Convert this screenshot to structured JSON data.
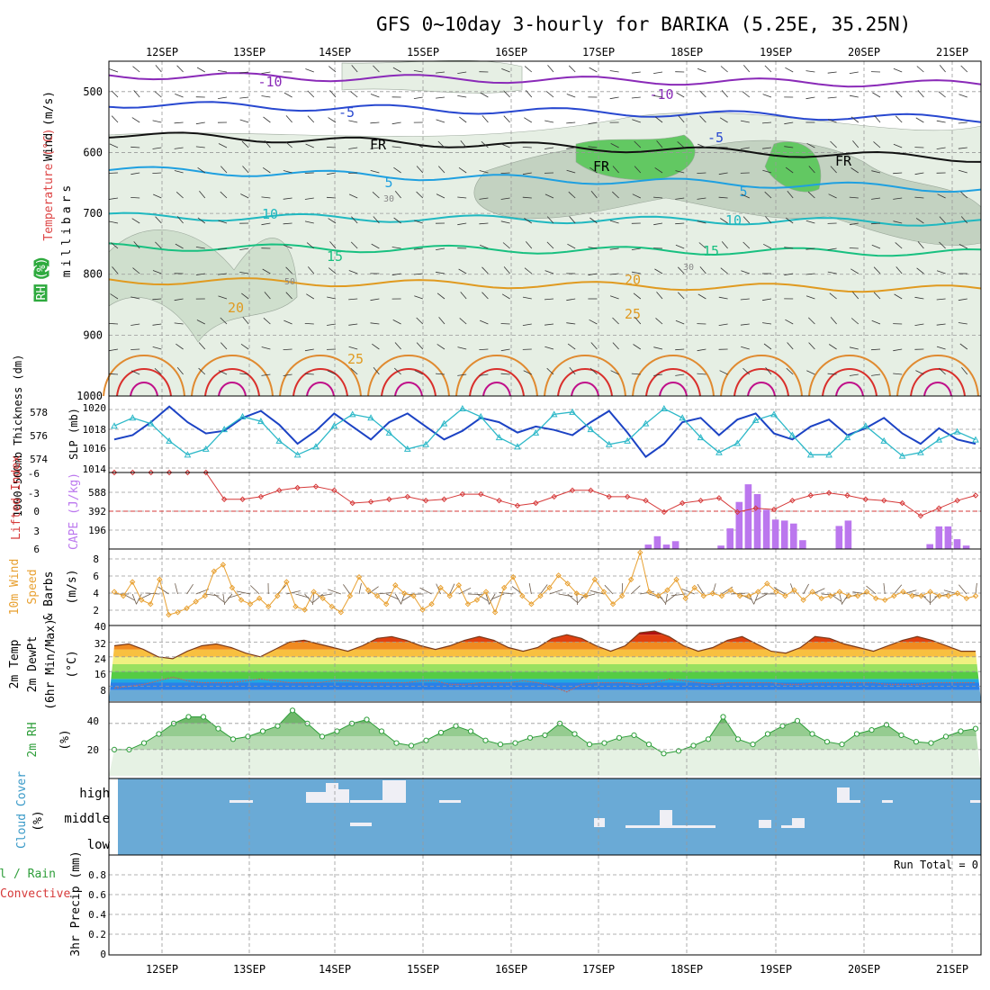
{
  "title": "GFS 0~10day 3-hourly for BARIKA (5.25E, 35.25N)",
  "date_labels": [
    "12SEP",
    "13SEP",
    "14SEP",
    "15SEP",
    "16SEP",
    "17SEP",
    "18SEP",
    "19SEP",
    "20SEP",
    "21SEP"
  ],
  "colors": {
    "dark_green": "#2e9e3a",
    "rh_fill": "#5dc55d",
    "cloud_blue": "#6aaad6",
    "cape_bar": "#bb77ee",
    "li_line": "#d63a3a",
    "wind_line": "#e8a030",
    "slp_line": "#1c43c4",
    "thick_line": "#2cb8c8"
  },
  "chart_data": [
    {
      "type": "line",
      "name": "upper-air cross section",
      "ylabel": "millibars",
      "left_labels": [
        "Wind (m/s)",
        "Temperature (°C)",
        "RH (%)"
      ],
      "pressure_ticks": [
        500,
        600,
        700,
        800,
        900,
        1000
      ],
      "ylim": [
        450,
        1000
      ],
      "contour_labels": [
        "-10",
        "-10",
        "-5",
        "-5",
        "FR",
        "FR",
        "FR",
        "5",
        "5",
        "10",
        "10",
        "15",
        "15",
        "20",
        "20",
        "25",
        "25",
        "30",
        "30",
        "50"
      ],
      "isotherms": [
        {
          "temp": -10,
          "p_start": 473,
          "p_end": 488,
          "color": "#8a2ab8"
        },
        {
          "temp": -5,
          "p_start": 520,
          "p_end": 545,
          "color": "#2848d0"
        },
        {
          "temp": 0,
          "p_start": 570,
          "p_end": 610,
          "color": "#111111"
        },
        {
          "temp": 5,
          "p_start": 628,
          "p_end": 660,
          "color": "#1fa0e0"
        },
        {
          "temp": 10,
          "p_start": 705,
          "p_end": 715,
          "color": "#20b8c0"
        },
        {
          "temp": 15,
          "p_start": 755,
          "p_end": 765,
          "color": "#18c080"
        },
        {
          "temp": 20,
          "p_start": 810,
          "p_end": 825,
          "color": "#e09a20"
        }
      ]
    },
    {
      "type": "line",
      "name": "SLP and 1000-500mb thickness",
      "labels": [
        "1000-500mb Thickness (dm)",
        "SLP (mb)"
      ],
      "thickness_ticks": [
        "578",
        "576",
        "574"
      ],
      "slp_ticks": [
        "1020",
        "1018",
        "1016",
        "1014"
      ],
      "slp_range": [
        1013,
        1021
      ],
      "slp": [
        1016.5,
        1017,
        1018.5,
        1020.3,
        1018.5,
        1017.2,
        1017.5,
        1019.0,
        1019.8,
        1018.2,
        1016.0,
        1017.5,
        1019.5,
        1018.0,
        1016.5,
        1018.5,
        1019.5,
        1018.0,
        1016.5,
        1017.5,
        1019.0,
        1018.5,
        1017.3,
        1018.0,
        1017.6,
        1017.0,
        1018.5,
        1019.8,
        1017.3,
        1014.5,
        1016.0,
        1018.5,
        1019.0,
        1017.0,
        1018.8,
        1019.5,
        1017.2,
        1016.5,
        1018.0,
        1018.8,
        1017.0,
        1017.8,
        1019.0,
        1017.2,
        1016.0,
        1017.8,
        1016.5,
        1016.0
      ],
      "thick_range": [
        573,
        579
      ],
      "thickness": [
        576.8,
        577.5,
        577.0,
        575.5,
        574.3,
        574.8,
        576.5,
        577.6,
        577.2,
        575.5,
        574.3,
        575.0,
        576.8,
        577.8,
        577.5,
        576.2,
        574.8,
        575.2,
        577.0,
        578.3,
        577.6,
        575.8,
        575.0,
        576.2,
        577.8,
        578.0,
        576.5,
        575.2,
        575.5,
        577.0,
        578.3,
        577.5,
        575.8,
        574.5,
        575.3,
        577.3,
        577.8,
        576.0,
        574.3,
        574.3,
        575.8,
        576.8,
        575.5,
        574.2,
        574.5,
        575.6,
        576.3,
        575.6
      ]
    },
    {
      "type": "bar",
      "name": "CAPE and Lifted Index",
      "labels": [
        "Lifted Index",
        "CAPE (J/kg)"
      ],
      "li_ticks": [
        "-6",
        "-3",
        "0",
        "3",
        "6"
      ],
      "cape_ticks": [
        "588",
        "392",
        "196"
      ],
      "cape_range": [
        0,
        780
      ],
      "li_range": [
        6,
        -6
      ],
      "lifted_index": [
        6,
        6,
        6,
        6,
        6,
        6,
        1.8,
        1.8,
        2.2,
        3.2,
        3.6,
        3.8,
        3.2,
        1.2,
        1.4,
        1.8,
        2.2,
        1.6,
        1.8,
        2.6,
        2.6,
        1.6,
        0.8,
        1.2,
        2.2,
        3.2,
        3.2,
        2.2,
        2.2,
        1.6,
        -0.2,
        1.2,
        1.6,
        2.0,
        -0.2,
        0.4,
        0.2,
        1.6,
        2.4,
        2.8,
        2.4,
        1.8,
        1.6,
        1.2,
        -0.8,
        0.4,
        1.6,
        2.4
      ],
      "cape": [
        0,
        0,
        0,
        0,
        0,
        0,
        0,
        0,
        0,
        0,
        0,
        0,
        0,
        0,
        0,
        0,
        0,
        0,
        0,
        0,
        0,
        0,
        0,
        0,
        0,
        0,
        0,
        0,
        0,
        0,
        0,
        0,
        0,
        0,
        0,
        0,
        0,
        0,
        0,
        0,
        0,
        0,
        0,
        0,
        0,
        0,
        0,
        0,
        0,
        0,
        0,
        0,
        0,
        0,
        0,
        0,
        0,
        0,
        0,
        45,
        130,
        45,
        80,
        0,
        0,
        0,
        0,
        35,
        210,
        480,
        660,
        560,
        400,
        300,
        290,
        260,
        90,
        0,
        0,
        0,
        235,
        290,
        0,
        0,
        0,
        0,
        0,
        0,
        0,
        0,
        50,
        230,
        230,
        100,
        35,
        0
      ]
    },
    {
      "type": "line",
      "name": "10m wind",
      "labels": [
        "10m Wind",
        "Speed",
        "(m/s)",
        "& Barbs"
      ],
      "yticks": [
        "8",
        "6",
        "4",
        "2"
      ],
      "ylim": [
        0,
        9
      ],
      "wind_speed": [
        4,
        3.5,
        5.2,
        3.0,
        2.5,
        5.5,
        1.2,
        1.5,
        2.0,
        2.8,
        3.5,
        6.5,
        7.3,
        4.5,
        3.0,
        2.5,
        3.2,
        2.2,
        3.5,
        5.2,
        2.2,
        1.8,
        4.0,
        3.2,
        2.2,
        1.5,
        3.5,
        5.8,
        4.2,
        3.5,
        2.5,
        4.8,
        3.8,
        3.5,
        1.8,
        2.5,
        4.5,
        3.5,
        4.8,
        2.5,
        3.0,
        4.0,
        1.5,
        4.5,
        5.8,
        3.5,
        2.5,
        3.5,
        4.5,
        6.0,
        5.0,
        3.8,
        3.5,
        5.5,
        4.0,
        2.5,
        3.5,
        5.5,
        8.8,
        4.0,
        3.5,
        4.2,
        5.5,
        3.2,
        4.5,
        3.5,
        3.8,
        3.5,
        4.2,
        3.5,
        3.5,
        4.0,
        5.0,
        4.0,
        3.5,
        4.2,
        3.0,
        4.0,
        3.2,
        3.5,
        4.0,
        3.5,
        3.5,
        4.0,
        3.2,
        3.0,
        3.5,
        4.0,
        3.5,
        3.5,
        4.0,
        3.5,
        3.5,
        3.8,
        3.2,
        3.5
      ]
    },
    {
      "type": "area",
      "name": "2m temperature and dewpoint",
      "labels": [
        "2m Temp",
        "2m DewPt",
        "(6hr Min/Max)",
        "(°C)"
      ],
      "yticks": [
        "40",
        "32",
        "24",
        "16",
        "8"
      ],
      "ylim": [
        0,
        40
      ],
      "temp_2m": [
        30,
        31,
        28,
        24,
        23,
        27,
        30,
        31,
        29,
        26,
        24,
        28,
        32,
        33,
        31,
        29,
        27,
        30,
        34,
        35,
        33,
        30,
        28,
        30,
        33,
        35,
        33,
        29,
        27,
        29,
        34,
        36,
        34,
        30,
        27,
        30,
        37,
        38,
        35,
        30,
        27,
        29,
        33,
        35,
        31,
        27,
        26,
        29,
        35,
        34,
        31,
        29,
        27,
        30,
        33,
        35,
        33,
        30,
        27,
        27
      ],
      "dewpoint_2m": [
        7,
        8,
        9,
        11,
        13,
        11,
        10,
        10,
        10,
        11,
        12,
        11,
        10,
        10,
        10,
        11,
        11,
        10,
        10,
        10,
        10,
        11,
        11,
        9,
        9,
        10,
        10,
        10,
        11,
        10,
        8,
        5,
        9,
        10,
        10,
        10,
        9,
        10,
        12,
        11,
        10,
        9,
        10,
        10,
        10,
        10,
        9,
        9,
        10,
        10,
        10,
        10,
        10,
        9,
        9,
        9,
        10,
        10,
        10,
        10
      ]
    },
    {
      "type": "area",
      "name": "2m relative humidity",
      "labels": [
        "2m RH",
        "(%)"
      ],
      "yticks": [
        "40",
        "20"
      ],
      "ylim": [
        0,
        55
      ],
      "rh_2m": [
        20,
        20,
        25,
        32,
        40,
        45,
        45,
        36,
        28,
        30,
        34,
        38,
        50,
        40,
        30,
        34,
        40,
        43,
        34,
        25,
        23,
        27,
        33,
        38,
        34,
        27,
        24,
        25,
        29,
        31,
        40,
        32,
        24,
        25,
        29,
        31,
        24,
        17,
        19,
        23,
        28,
        45,
        28,
        24,
        32,
        38,
        42,
        32,
        26,
        24,
        32,
        35,
        39,
        31,
        26,
        25,
        30,
        34,
        36
      ]
    },
    {
      "type": "bar",
      "name": "cloud cover",
      "labels": [
        "Cloud Cover",
        "(%)"
      ],
      "levels": [
        "high",
        "middle",
        "low"
      ]
    },
    {
      "type": "bar",
      "name": "3hr precipitation",
      "labels": [
        "Total / Rain",
        "Convective",
        "3hr Precip (mm)"
      ],
      "yticks": [
        "0.8",
        "0.6",
        "0.4",
        "0.2",
        "0"
      ],
      "ylim": [
        0,
        0.95
      ],
      "run_total": "Run Total = 0"
    }
  ]
}
